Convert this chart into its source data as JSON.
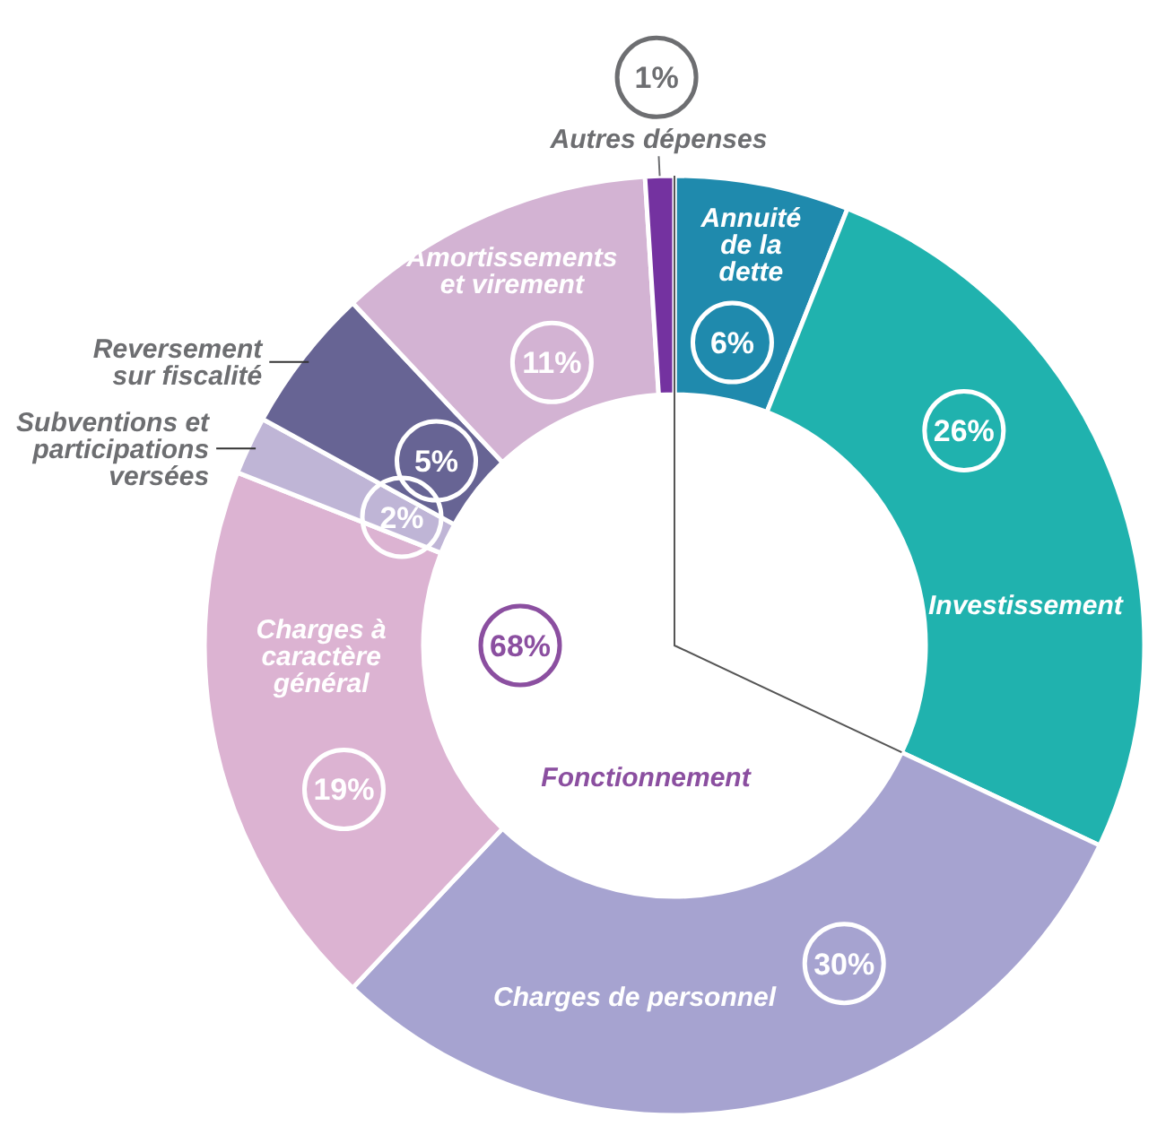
{
  "chart_data": {
    "type": "donut",
    "categories": [
      "Annuité de la dette",
      "Investissement",
      "Charges de personnel",
      "Charges à caractère général",
      "Subventions et participations versées",
      "Reversement sur fiscalité",
      "Amortissements et virement",
      "Autres dépenses"
    ],
    "values": [
      6,
      26,
      30,
      19,
      2,
      5,
      11,
      1
    ],
    "colors": [
      "#1f8aad",
      "#20b2ae",
      "#a6a3d0",
      "#dcb3d2",
      "#bfb5d6",
      "#676494",
      "#d3b3d3",
      "#7432a0"
    ],
    "value_labels": [
      "6%",
      "26%",
      "30%",
      "19%",
      "2%",
      "5%",
      "11%",
      "1%"
    ],
    "annotations": [
      "68%",
      "Fonctionnement"
    ]
  }
}
